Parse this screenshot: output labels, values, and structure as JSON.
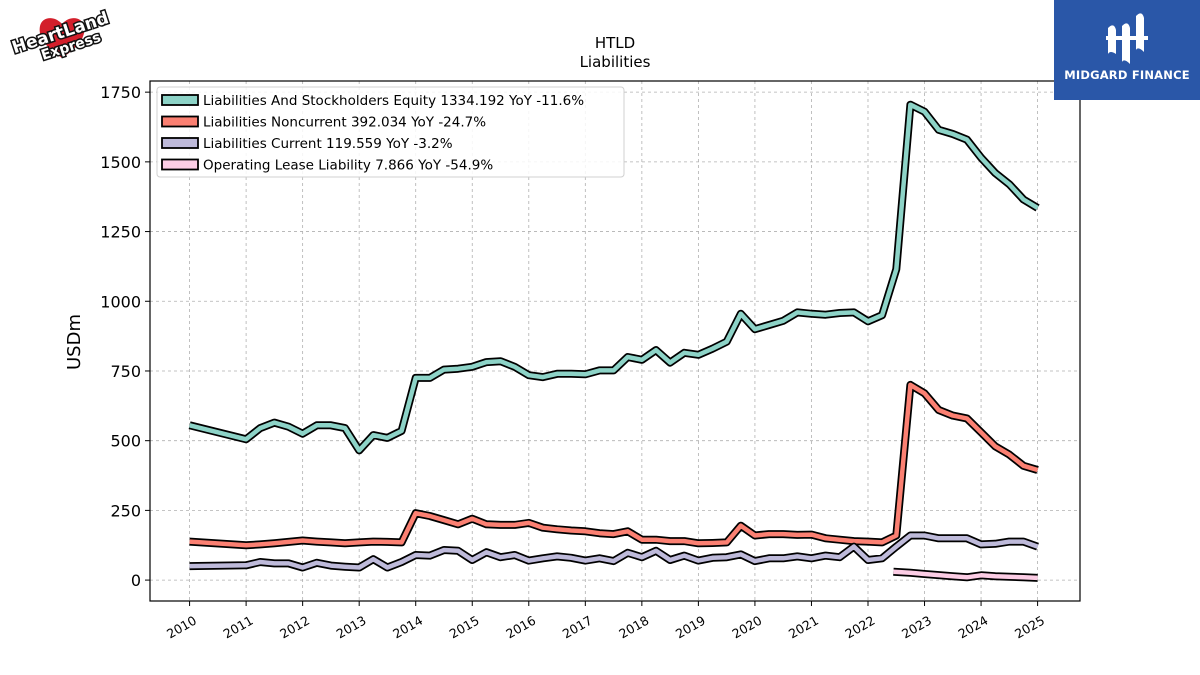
{
  "logos": {
    "left_text": "HeartLand Express",
    "right_text": "MIDGARD FINANCE"
  },
  "chart_data": {
    "type": "line",
    "title": "HTLD",
    "subtitle": "Liabilities",
    "ylabel": "USDm",
    "xlabel": "",
    "ylim": [
      -75,
      1790
    ],
    "xlim": [
      2009.3,
      2025.75
    ],
    "yticks": [
      0,
      250,
      500,
      750,
      1000,
      1250,
      1500,
      1750
    ],
    "xticks": [
      "2010",
      "2011",
      "2012",
      "2013",
      "2014",
      "2015",
      "2016",
      "2017",
      "2018",
      "2019",
      "2020",
      "2021",
      "2022",
      "2023",
      "2024",
      "2025"
    ],
    "grid": true,
    "legend_position": "top-left",
    "series": [
      {
        "name": "Liabilities And Stockholders Equity",
        "legend": "Liabilities And Stockholders Equity  1334.192 YoY -11.6%",
        "color": "#8dd3c7",
        "x": [
          2010.0,
          2011.0,
          2011.25,
          2011.5,
          2011.75,
          2012.0,
          2012.25,
          2012.5,
          2012.75,
          2013.0,
          2013.25,
          2013.5,
          2013.75,
          2014.0,
          2014.25,
          2014.5,
          2014.75,
          2015.0,
          2015.25,
          2015.5,
          2015.75,
          2016.0,
          2016.25,
          2016.5,
          2016.75,
          2017.0,
          2017.25,
          2017.5,
          2017.75,
          2018.0,
          2018.25,
          2018.5,
          2018.75,
          2019.0,
          2019.25,
          2019.5,
          2019.75,
          2020.0,
          2020.25,
          2020.5,
          2020.75,
          2021.0,
          2021.25,
          2021.5,
          2021.75,
          2022.0,
          2022.25,
          2022.5,
          2022.75,
          2023.0,
          2023.25,
          2023.5,
          2023.75,
          2024.0,
          2024.25,
          2024.5,
          2024.75,
          2025.0
        ],
        "values": [
          555,
          505,
          545,
          565,
          550,
          525,
          555,
          555,
          545,
          465,
          520,
          510,
          535,
          725,
          725,
          755,
          758,
          765,
          782,
          785,
          765,
          735,
          728,
          740,
          740,
          738,
          752,
          752,
          800,
          790,
          825,
          780,
          815,
          808,
          830,
          855,
          955,
          900,
          915,
          930,
          960,
          955,
          952,
          958,
          960,
          928,
          950,
          1115,
          1705,
          1680,
          1615,
          1600,
          1580,
          1515,
          1460,
          1420,
          1365,
          1335
        ]
      },
      {
        "name": "Liabilities Noncurrent",
        "legend": "Liabilities Noncurrent  392.034 YoY -24.7%",
        "color": "#fb8072",
        "x": [
          2010.0,
          2011.0,
          2011.25,
          2011.5,
          2011.75,
          2012.0,
          2012.25,
          2012.5,
          2012.75,
          2013.0,
          2013.25,
          2013.5,
          2013.75,
          2014.0,
          2014.25,
          2014.5,
          2014.75,
          2015.0,
          2015.25,
          2015.5,
          2015.75,
          2016.0,
          2016.25,
          2016.5,
          2016.75,
          2017.0,
          2017.25,
          2017.5,
          2017.75,
          2018.0,
          2018.25,
          2018.5,
          2018.75,
          2019.0,
          2019.25,
          2019.5,
          2019.75,
          2020.0,
          2020.25,
          2020.5,
          2020.75,
          2021.0,
          2021.25,
          2021.5,
          2021.75,
          2022.0,
          2022.25,
          2022.5,
          2022.75,
          2023.0,
          2023.25,
          2023.5,
          2023.75,
          2024.0,
          2024.25,
          2024.5,
          2024.75,
          2025.0
        ],
        "values": [
          138,
          125,
          128,
          132,
          137,
          142,
          138,
          135,
          132,
          135,
          138,
          137,
          135,
          240,
          230,
          215,
          200,
          220,
          200,
          198,
          198,
          205,
          188,
          182,
          178,
          175,
          168,
          165,
          175,
          145,
          145,
          140,
          140,
          132,
          133,
          135,
          195,
          160,
          165,
          165,
          162,
          163,
          150,
          145,
          140,
          138,
          135,
          160,
          700,
          670,
          610,
          590,
          580,
          530,
          480,
          450,
          410,
          395
        ]
      },
      {
        "name": "Liabilities Current",
        "legend": "Liabilities Current  119.559 YoY -3.2%",
        "color": "#bebada",
        "x": [
          2010.0,
          2011.0,
          2011.25,
          2011.5,
          2011.75,
          2012.0,
          2012.25,
          2012.5,
          2012.75,
          2013.0,
          2013.25,
          2013.5,
          2013.75,
          2014.0,
          2014.25,
          2014.5,
          2014.75,
          2015.0,
          2015.25,
          2015.5,
          2015.75,
          2016.0,
          2016.25,
          2016.5,
          2016.75,
          2017.0,
          2017.25,
          2017.5,
          2017.75,
          2018.0,
          2018.25,
          2018.5,
          2018.75,
          2019.0,
          2019.25,
          2019.5,
          2019.75,
          2020.0,
          2020.25,
          2020.5,
          2020.75,
          2021.0,
          2021.25,
          2021.5,
          2021.75,
          2022.0,
          2022.25,
          2022.5,
          2022.75,
          2023.0,
          2023.25,
          2023.5,
          2023.75,
          2024.0,
          2024.25,
          2024.5,
          2024.75,
          2025.0
        ],
        "values": [
          50,
          53,
          65,
          60,
          60,
          45,
          62,
          52,
          48,
          45,
          75,
          45,
          65,
          90,
          88,
          108,
          105,
          72,
          100,
          82,
          90,
          70,
          78,
          85,
          80,
          70,
          78,
          68,
          98,
          82,
          105,
          72,
          88,
          70,
          80,
          82,
          92,
          68,
          78,
          78,
          85,
          78,
          88,
          82,
          120,
          72,
          78,
          120,
          160,
          160,
          150,
          150,
          150,
          128,
          130,
          138,
          138,
          120
        ]
      },
      {
        "name": "Operating Lease Liability",
        "legend": "Operating Lease Liability  7.866 YoY -54.9%",
        "color": "#fccde5",
        "x": [
          2022.45,
          2022.75,
          2023.0,
          2023.25,
          2023.5,
          2023.75,
          2024.0,
          2024.25,
          2024.5,
          2024.75,
          2025.0
        ],
        "values": [
          30,
          26,
          22,
          18,
          14,
          10,
          17,
          14,
          12,
          10,
          8
        ]
      }
    ]
  }
}
